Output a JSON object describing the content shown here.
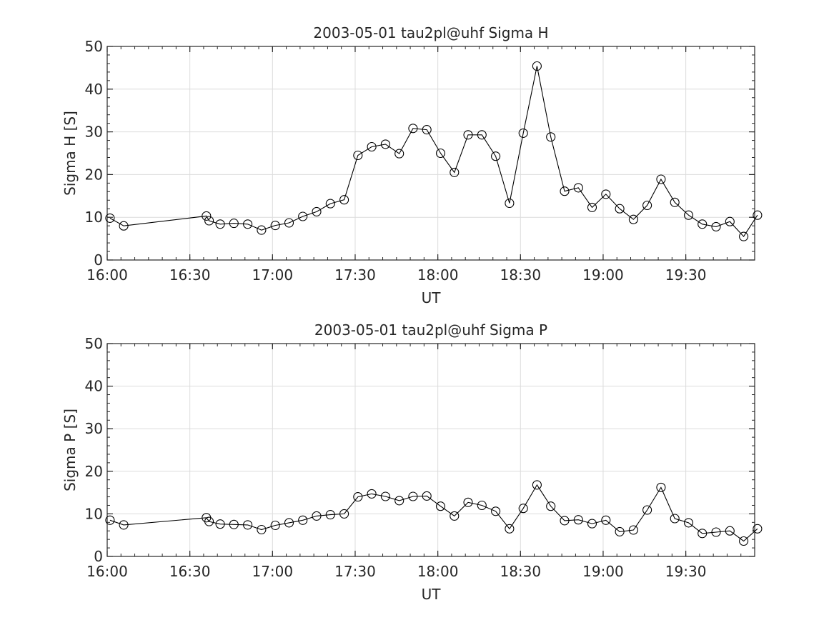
{
  "chart_data": [
    {
      "type": "line",
      "title": "2003-05-01  tau2pl@uhf Sigma H",
      "xlabel": "UT",
      "ylabel": "Sigma H [S]",
      "xlim": [
        "16:00",
        "19:55"
      ],
      "ylim": [
        0,
        50
      ],
      "xticks": [
        "16:00",
        "16:30",
        "17:00",
        "17:30",
        "18:00",
        "18:30",
        "19:00",
        "19:30"
      ],
      "yticks": [
        0,
        10,
        20,
        30,
        40,
        50
      ],
      "grid": true,
      "marker": "open-circle",
      "series": [
        {
          "x": [
            "16:01",
            "16:06",
            "16:36",
            "16:37",
            "16:41",
            "16:46",
            "16:51",
            "16:56",
            "17:01",
            "17:06",
            "17:11",
            "17:16",
            "17:21",
            "17:26",
            "17:31",
            "17:36",
            "17:41",
            "17:46",
            "17:51",
            "17:56",
            "18:01",
            "18:06",
            "18:11",
            "18:16",
            "18:21",
            "18:26",
            "18:31",
            "18:36",
            "18:41",
            "18:46",
            "18:51",
            "18:56",
            "19:01",
            "19:06",
            "19:11",
            "19:16",
            "19:21",
            "19:26",
            "19:31",
            "19:36",
            "19:41",
            "19:46",
            "19:51",
            "19:56"
          ],
          "y": [
            9.8,
            8.0,
            10.3,
            9.2,
            8.4,
            8.6,
            8.4,
            7.0,
            8.1,
            8.7,
            10.2,
            11.3,
            13.2,
            14.1,
            24.5,
            26.5,
            27.1,
            24.9,
            30.8,
            30.5,
            25.0,
            20.5,
            29.3,
            29.3,
            24.3,
            13.3,
            29.7,
            45.4,
            28.8,
            16.1,
            16.9,
            12.3,
            15.4,
            12.0,
            9.5,
            12.8,
            18.9,
            13.5,
            10.5,
            8.4,
            7.8,
            9.0,
            5.5,
            10.5
          ]
        }
      ]
    },
    {
      "type": "line",
      "title": "2003-05-01  tau2pl@uhf Sigma P",
      "xlabel": "UT",
      "ylabel": "Sigma P [S]",
      "xlim": [
        "16:00",
        "19:55"
      ],
      "ylim": [
        0,
        50
      ],
      "xticks": [
        "16:00",
        "16:30",
        "17:00",
        "17:30",
        "18:00",
        "18:30",
        "19:00",
        "19:30"
      ],
      "yticks": [
        0,
        10,
        20,
        30,
        40,
        50
      ],
      "grid": true,
      "marker": "open-circle",
      "series": [
        {
          "x": [
            "16:01",
            "16:06",
            "16:36",
            "16:37",
            "16:41",
            "16:46",
            "16:51",
            "16:56",
            "17:01",
            "17:06",
            "17:11",
            "17:16",
            "17:21",
            "17:26",
            "17:31",
            "17:36",
            "17:41",
            "17:46",
            "17:51",
            "17:56",
            "18:01",
            "18:06",
            "18:11",
            "18:16",
            "18:21",
            "18:26",
            "18:31",
            "18:36",
            "18:41",
            "18:46",
            "18:51",
            "18:56",
            "19:01",
            "19:06",
            "19:11",
            "19:16",
            "19:21",
            "19:26",
            "19:31",
            "19:36",
            "19:41",
            "19:46",
            "19:51",
            "19:56"
          ],
          "y": [
            8.5,
            7.4,
            9.1,
            8.2,
            7.6,
            7.5,
            7.4,
            6.3,
            7.3,
            7.9,
            8.5,
            9.5,
            9.8,
            10.0,
            14.0,
            14.7,
            14.1,
            13.1,
            14.1,
            14.2,
            11.8,
            9.5,
            12.7,
            12.0,
            10.6,
            6.5,
            11.3,
            16.8,
            11.8,
            8.4,
            8.6,
            7.7,
            8.5,
            5.8,
            6.2,
            10.9,
            16.2,
            8.9,
            7.9,
            5.4,
            5.7,
            6.0,
            3.6,
            6.5
          ]
        }
      ]
    }
  ]
}
